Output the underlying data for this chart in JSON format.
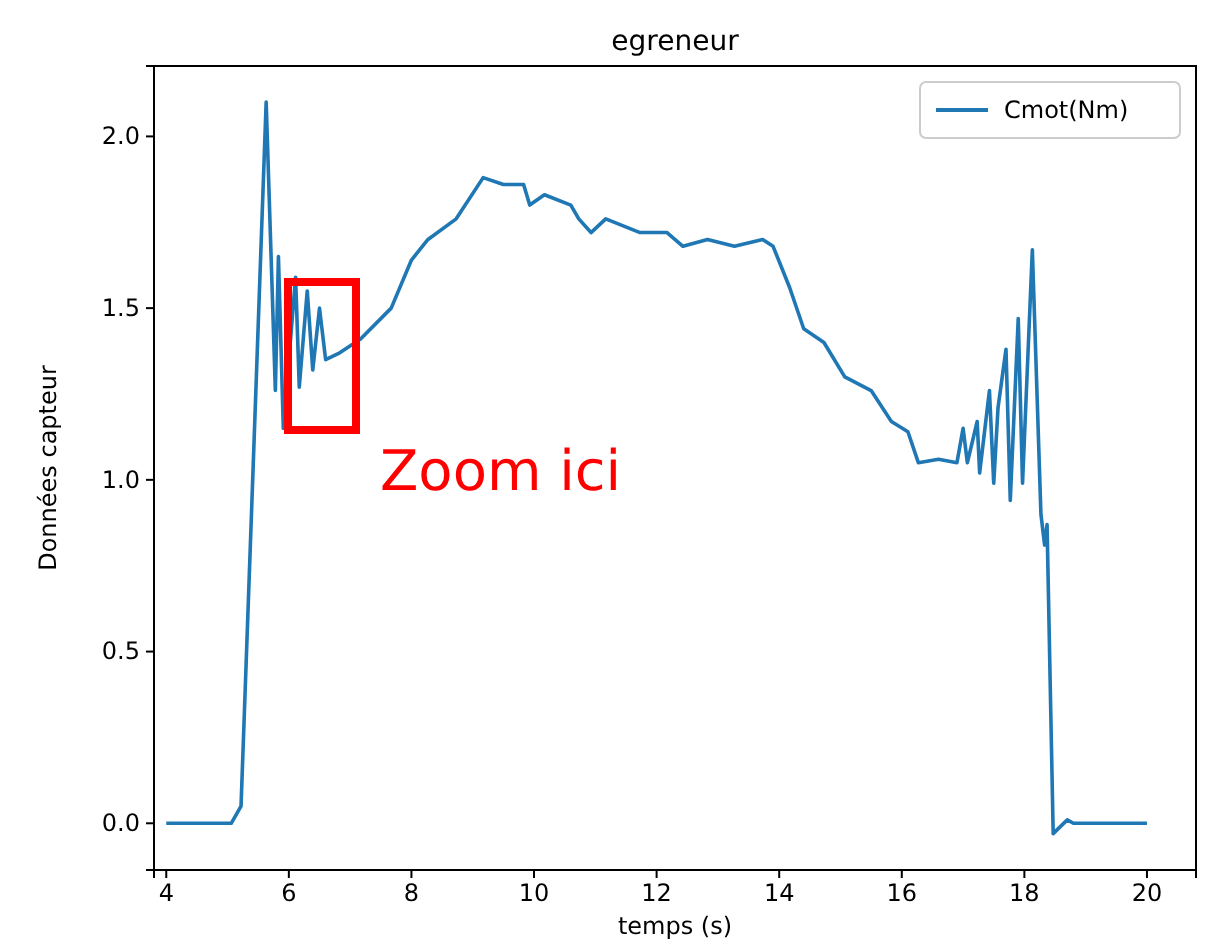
{
  "chart_data": {
    "type": "line",
    "title": "egreneur",
    "xlabel": "temps (s)",
    "ylabel": "Données capteur",
    "annotations": [
      "Zoom ici"
    ],
    "xlim": [
      3.8,
      20.8
    ],
    "xticks": [
      4,
      6,
      8,
      10,
      12,
      14,
      16,
      18,
      20
    ],
    "ylim": [
      -0.136,
      2.205
    ],
    "yticks": [
      {
        "value": 0,
        "label": "0.0"
      },
      {
        "value": 0.5,
        "label": "0.5"
      },
      {
        "value": 1,
        "label": "1.0"
      },
      {
        "value": 1.5,
        "label": "1.5"
      },
      {
        "value": 2,
        "label": "2.0"
      }
    ],
    "grid": false,
    "legend": "top right",
    "marker": "none",
    "line_style": "solid",
    "series": [
      {
        "name": "Cmot(Nm)",
        "color": "#1f77b4",
        "x": [
          4,
          5.06,
          5.22,
          5.63,
          5.78,
          5.83,
          5.91,
          6.11,
          6.17,
          6.3,
          6.39,
          6.5,
          6.6,
          6.83,
          7.17,
          7.67,
          8.0,
          8.27,
          8.73,
          9.17,
          9.5,
          9.83,
          9.93,
          10.17,
          10.6,
          10.73,
          10.93,
          11.17,
          11.73,
          12.17,
          12.43,
          12.83,
          13.27,
          13.73,
          13.9,
          14.17,
          14.4,
          14.73,
          15.07,
          15.5,
          15.83,
          16.1,
          16.27,
          16.6,
          16.9,
          17.0,
          17.07,
          17.23,
          17.27,
          17.43,
          17.5,
          17.57,
          17.7,
          17.77,
          17.9,
          17.97,
          18.13,
          18.27,
          18.33,
          18.37,
          18.47,
          18.7,
          18.8,
          20.0
        ],
        "values": [
          0,
          0,
          0.05,
          2.1,
          1.26,
          1.65,
          1.15,
          1.59,
          1.27,
          1.55,
          1.32,
          1.5,
          1.35,
          1.37,
          1.41,
          1.5,
          1.64,
          1.7,
          1.76,
          1.88,
          1.86,
          1.86,
          1.8,
          1.83,
          1.8,
          1.76,
          1.72,
          1.76,
          1.72,
          1.72,
          1.68,
          1.7,
          1.68,
          1.7,
          1.68,
          1.56,
          1.44,
          1.4,
          1.3,
          1.26,
          1.17,
          1.14,
          1.05,
          1.06,
          1.05,
          1.15,
          1.05,
          1.17,
          1.02,
          1.26,
          0.99,
          1.21,
          1.38,
          0.94,
          1.47,
          0.99,
          1.67,
          0.9,
          0.81,
          0.87,
          -0.03,
          0.01,
          0,
          0
        ]
      }
    ]
  }
}
